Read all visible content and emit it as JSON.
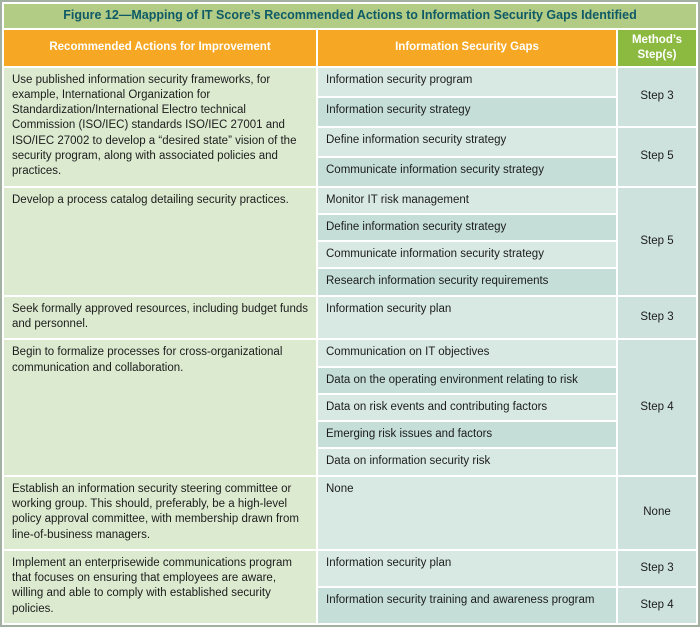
{
  "figure_title": "Figure 12—Mapping of IT Score’s Recommended Actions to Information Security Gaps Identified",
  "columns": {
    "actions": "Recommended Actions for Improvement",
    "gaps": "Information Security Gaps",
    "steps": "Method’s Step(s)"
  },
  "colors": {
    "title_bg": "#b2cb85",
    "title_text": "#0e5a66",
    "header_orange": "#f6a723",
    "header_green": "#8cba40",
    "action_bg": "#dcead0",
    "gap_bg_light": "#d8e9e3",
    "gap_bg_dark": "#c5ded8",
    "step_bg": "#cde2dc",
    "grid": "#ffffff",
    "border": "#a2b0a2",
    "text": "#1c1c1c"
  },
  "table": {
    "rows": [
      {
        "action": "Use published information security frameworks, for example, International Organization for Standardization/International Electro technical Commission (ISO/IEC) standards ISO/IEC 27001 and ISO/IEC 27002 to develop a “desired state” vision of the security program, along with associated policies and practices.",
        "groups": [
          {
            "gaps": [
              "Information security program",
              "Information security strategy"
            ],
            "step": "Step 3"
          },
          {
            "gaps": [
              "Define information security strategy",
              "Communicate information security strategy"
            ],
            "step": "Step 5"
          }
        ]
      },
      {
        "action": "Develop a process catalog detailing security practices.",
        "groups": [
          {
            "gaps": [
              "Monitor IT risk management",
              "Define information security strategy",
              "Communicate information security strategy",
              "Research information security requirements"
            ],
            "step": "Step 5"
          }
        ]
      },
      {
        "action": "Seek formally approved resources, including budget funds and personnel.",
        "groups": [
          {
            "gaps": [
              "Information security plan"
            ],
            "step": "Step 3"
          }
        ]
      },
      {
        "action": "Begin to formalize processes for cross-organizational communication and collaboration.",
        "groups": [
          {
            "gaps": [
              "Communication on IT objectives",
              "Data on the operating environment relating to risk",
              "Data on risk events and contributing factors",
              "Emerging risk issues and factors",
              "Data on information security risk"
            ],
            "step": "Step 4"
          }
        ]
      },
      {
        "action": "Establish an information security steering committee or working group. This should, preferably, be a high-level policy approval committee, with membership drawn from line-of-business managers.",
        "groups": [
          {
            "gaps": [
              "None"
            ],
            "step": "None"
          }
        ]
      },
      {
        "action": "Implement an enterprisewide communications program that focuses on ensuring that employees are aware, willing and able to comply with established security policies.",
        "groups": [
          {
            "gaps": [
              "Information security plan"
            ],
            "step": "Step 3"
          },
          {
            "gaps": [
              "Information security training and awareness program"
            ],
            "step": "Step 4"
          }
        ]
      }
    ]
  }
}
